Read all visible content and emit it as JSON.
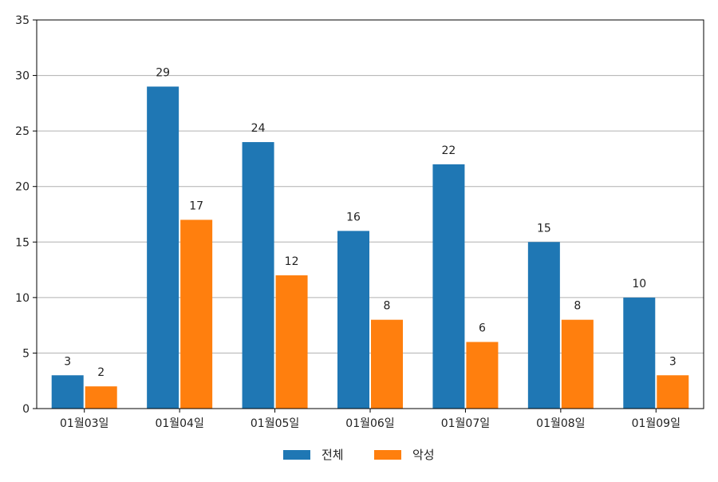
{
  "chart_data": {
    "type": "bar",
    "categories": [
      "01월03일",
      "01월04일",
      "01월05일",
      "01월06일",
      "01월07일",
      "01월08일",
      "01월09일"
    ],
    "series": [
      {
        "name": "전체",
        "color": "#1f77b4",
        "values": [
          3,
          29,
          24,
          16,
          22,
          15,
          10
        ]
      },
      {
        "name": "악성",
        "color": "#ff7f0e",
        "values": [
          2,
          17,
          12,
          8,
          6,
          8,
          3
        ]
      }
    ],
    "ylim": [
      0,
      35
    ],
    "yticks": [
      0,
      5,
      10,
      15,
      20,
      25,
      30,
      35
    ],
    "grid": "horizontal",
    "legend": "bottom-center",
    "data_labels": true
  }
}
